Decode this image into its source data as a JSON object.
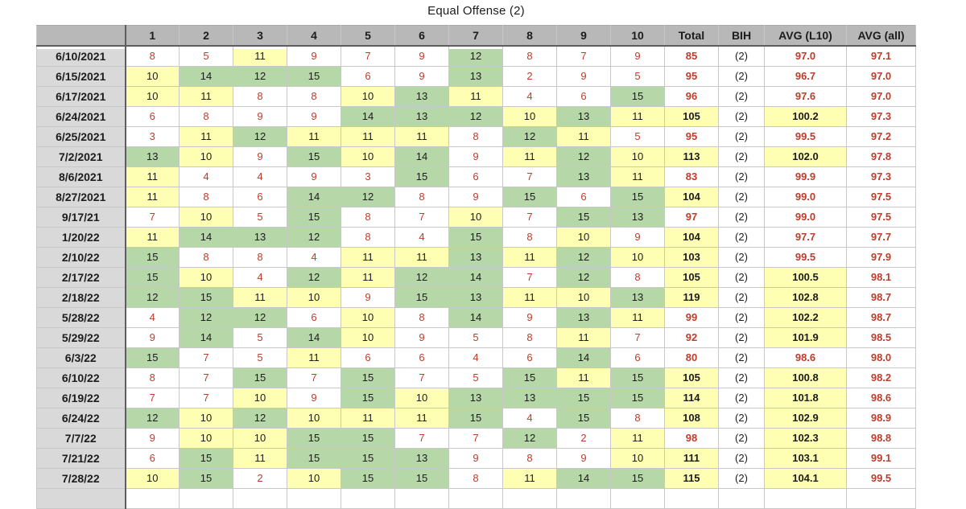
{
  "title": "Equal Offense (2)",
  "table": {
    "columns": [
      "",
      "1",
      "2",
      "3",
      "4",
      "5",
      "6",
      "7",
      "8",
      "9",
      "10",
      "Total",
      "BIH",
      "AVG (L10)",
      "AVG (all)"
    ],
    "rows": [
      {
        "date": "6/10/2021",
        "scores": [
          8,
          5,
          11,
          9,
          7,
          9,
          12,
          8,
          7,
          9
        ],
        "total": 85,
        "bih": "(2)",
        "avg_l10": "97.0",
        "avg_all": "97.1"
      },
      {
        "date": "6/15/2021",
        "scores": [
          10,
          14,
          12,
          15,
          6,
          9,
          13,
          2,
          9,
          5
        ],
        "total": 95,
        "bih": "(2)",
        "avg_l10": "96.7",
        "avg_all": "97.0"
      },
      {
        "date": "6/17/2021",
        "scores": [
          10,
          11,
          8,
          8,
          10,
          13,
          11,
          4,
          6,
          15
        ],
        "total": 96,
        "bih": "(2)",
        "avg_l10": "97.6",
        "avg_all": "97.0"
      },
      {
        "date": "6/24/2021",
        "scores": [
          6,
          8,
          9,
          9,
          14,
          13,
          12,
          10,
          13,
          11
        ],
        "total": 105,
        "bih": "(2)",
        "avg_l10": "100.2",
        "avg_all": "97.3"
      },
      {
        "date": "6/25/2021",
        "scores": [
          3,
          11,
          12,
          11,
          11,
          11,
          8,
          12,
          11,
          5
        ],
        "total": 95,
        "bih": "(2)",
        "avg_l10": "99.5",
        "avg_all": "97.2"
      },
      {
        "date": "7/2/2021",
        "scores": [
          13,
          10,
          9,
          15,
          10,
          14,
          9,
          11,
          12,
          10
        ],
        "total": 113,
        "bih": "(2)",
        "avg_l10": "102.0",
        "avg_all": "97.8"
      },
      {
        "date": "8/6/2021",
        "scores": [
          11,
          4,
          4,
          9,
          3,
          15,
          6,
          7,
          13,
          11
        ],
        "total": 83,
        "bih": "(2)",
        "avg_l10": "99.9",
        "avg_all": "97.3"
      },
      {
        "date": "8/27/2021",
        "scores": [
          11,
          8,
          6,
          14,
          12,
          8,
          9,
          15,
          6,
          15
        ],
        "total": 104,
        "bih": "(2)",
        "avg_l10": "99.0",
        "avg_all": "97.5"
      },
      {
        "date": "9/17/21",
        "scores": [
          7,
          10,
          5,
          15,
          8,
          7,
          10,
          7,
          15,
          13
        ],
        "total": 97,
        "bih": "(2)",
        "avg_l10": "99.0",
        "avg_all": "97.5"
      },
      {
        "date": "1/20/22",
        "scores": [
          11,
          14,
          13,
          12,
          8,
          4,
          15,
          8,
          10,
          9
        ],
        "total": 104,
        "bih": "(2)",
        "avg_l10": "97.7",
        "avg_all": "97.7"
      },
      {
        "date": "2/10/22",
        "scores": [
          15,
          8,
          8,
          4,
          11,
          11,
          13,
          11,
          12,
          10
        ],
        "total": 103,
        "bih": "(2)",
        "avg_l10": "99.5",
        "avg_all": "97.9"
      },
      {
        "date": "2/17/22",
        "scores": [
          15,
          10,
          4,
          12,
          11,
          12,
          14,
          7,
          12,
          8
        ],
        "total": 105,
        "bih": "(2)",
        "avg_l10": "100.5",
        "avg_all": "98.1"
      },
      {
        "date": "2/18/22",
        "scores": [
          12,
          15,
          11,
          10,
          9,
          15,
          13,
          11,
          10,
          13
        ],
        "total": 119,
        "bih": "(2)",
        "avg_l10": "102.8",
        "avg_all": "98.7"
      },
      {
        "date": "5/28/22",
        "scores": [
          4,
          12,
          12,
          6,
          10,
          8,
          14,
          9,
          13,
          11
        ],
        "total": 99,
        "bih": "(2)",
        "avg_l10": "102.2",
        "avg_all": "98.7"
      },
      {
        "date": "5/29/22",
        "scores": [
          9,
          14,
          5,
          14,
          10,
          9,
          5,
          8,
          11,
          7
        ],
        "total": 92,
        "bih": "(2)",
        "avg_l10": "101.9",
        "avg_all": "98.5"
      },
      {
        "date": "6/3/22",
        "scores": [
          15,
          7,
          5,
          11,
          6,
          6,
          4,
          6,
          14,
          6
        ],
        "total": 80,
        "bih": "(2)",
        "avg_l10": "98.6",
        "avg_all": "98.0"
      },
      {
        "date": "6/10/22",
        "scores": [
          8,
          7,
          15,
          7,
          15,
          7,
          5,
          15,
          11,
          15
        ],
        "total": 105,
        "bih": "(2)",
        "avg_l10": "100.8",
        "avg_all": "98.2"
      },
      {
        "date": "6/19/22",
        "scores": [
          7,
          7,
          10,
          9,
          15,
          10,
          13,
          13,
          15,
          15
        ],
        "total": 114,
        "bih": "(2)",
        "avg_l10": "101.8",
        "avg_all": "98.6"
      },
      {
        "date": "6/24/22",
        "scores": [
          12,
          10,
          12,
          10,
          11,
          11,
          15,
          4,
          15,
          8
        ],
        "total": 108,
        "bih": "(2)",
        "avg_l10": "102.9",
        "avg_all": "98.9"
      },
      {
        "date": "7/7/22",
        "scores": [
          9,
          10,
          10,
          15,
          15,
          7,
          7,
          12,
          2,
          11
        ],
        "total": 98,
        "bih": "(2)",
        "avg_l10": "102.3",
        "avg_all": "98.8"
      },
      {
        "date": "7/21/22",
        "scores": [
          6,
          15,
          11,
          15,
          15,
          13,
          9,
          8,
          9,
          10
        ],
        "total": 111,
        "bih": "(2)",
        "avg_l10": "103.1",
        "avg_all": "99.1"
      },
      {
        "date": "7/28/22",
        "scores": [
          10,
          15,
          2,
          10,
          15,
          15,
          8,
          11,
          14,
          15
        ],
        "total": 115,
        "bih": "(2)",
        "avg_l10": "104.1",
        "avg_all": "99.5"
      }
    ],
    "has_trailing_empty_row": true
  },
  "formatting": {
    "score_green_min": 12,
    "score_yellow_min": 10,
    "summary_highlight_min": 100
  },
  "colors": {
    "header_bg": "#b8b8b8",
    "row_label_bg": "#d9d9d9",
    "highlight_green": "#b6d7a8",
    "highlight_yellow": "#ffffb3",
    "negative_text_red": "#bf3b2a",
    "text_black": "#1c1c1c",
    "gridline": "#c8c8c8",
    "freeze_border": "#5e5e5e"
  }
}
